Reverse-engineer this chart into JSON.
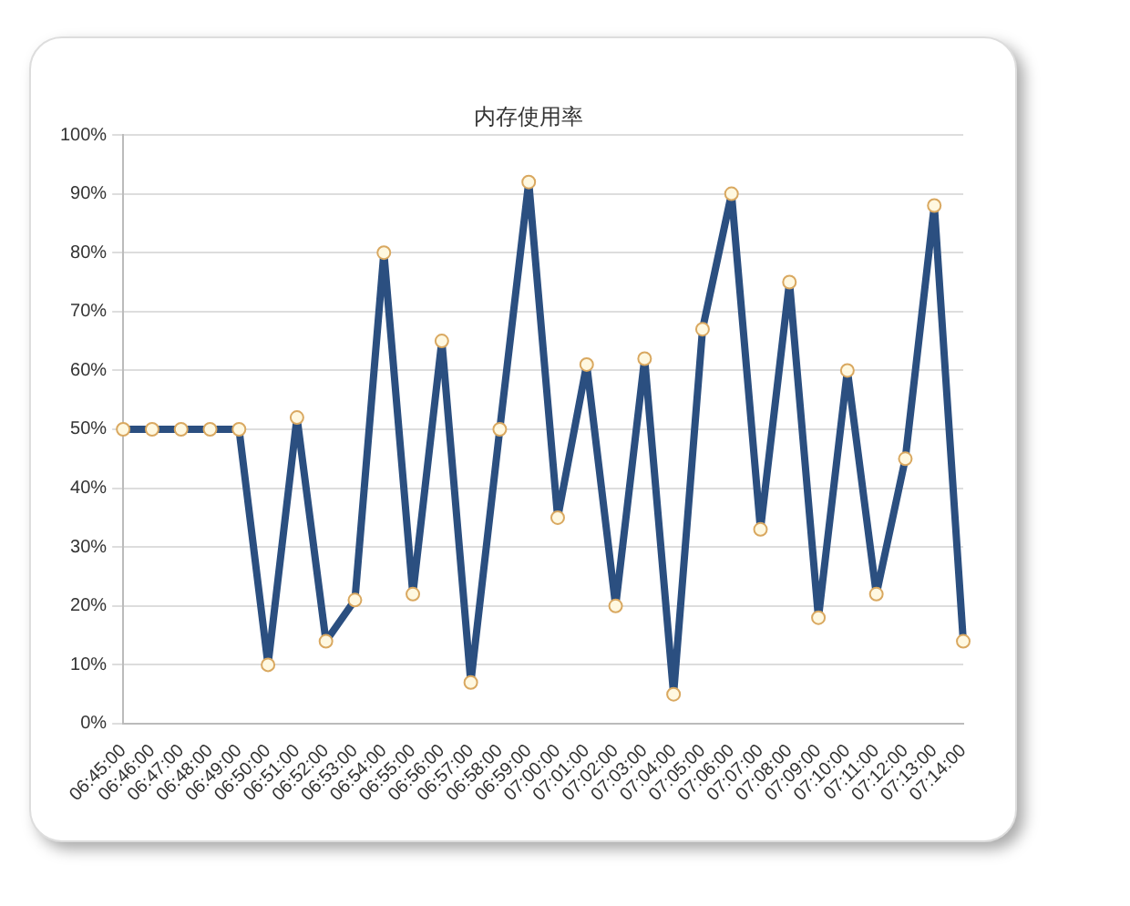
{
  "chart_data": {
    "type": "line",
    "title": "内存使用率",
    "categories": [
      "06:45:00",
      "06:46:00",
      "06:47:00",
      "06:48:00",
      "06:49:00",
      "06:50:00",
      "06:51:00",
      "06:52:00",
      "06:53:00",
      "06:54:00",
      "06:55:00",
      "06:56:00",
      "06:57:00",
      "06:58:00",
      "06:59:00",
      "07:00:00",
      "07:01:00",
      "07:02:00",
      "07:03:00",
      "07:04:00",
      "07:05:00",
      "07:06:00",
      "07:07:00",
      "07:08:00",
      "07:09:00",
      "07:10:00",
      "07:11:00",
      "07:12:00",
      "07:13:00",
      "07:14:00"
    ],
    "series": [
      {
        "color": "#2b4f80",
        "values": [
          50,
          50,
          50,
          50,
          50,
          10,
          52,
          14,
          21,
          80,
          22,
          65,
          7,
          50,
          92,
          35,
          61,
          20,
          62,
          5,
          67,
          90,
          33,
          75,
          18,
          60,
          22,
          45,
          88,
          14
        ]
      }
    ],
    "ylim": [
      0,
      100
    ],
    "yticks": [
      {
        "value": 0,
        "label": "0%"
      },
      {
        "value": 10,
        "label": "10%"
      },
      {
        "value": 20,
        "label": "20%"
      },
      {
        "value": 30,
        "label": "30%"
      },
      {
        "value": 40,
        "label": "40%"
      },
      {
        "value": 50,
        "label": "50%"
      },
      {
        "value": 60,
        "label": "60%"
      },
      {
        "value": 70,
        "label": "70%"
      },
      {
        "value": 80,
        "label": "80%"
      },
      {
        "value": 90,
        "label": "90%"
      },
      {
        "value": 100,
        "label": "100%"
      }
    ],
    "grid": "y",
    "legend": false,
    "marker": "circle",
    "line_style": "solid"
  }
}
